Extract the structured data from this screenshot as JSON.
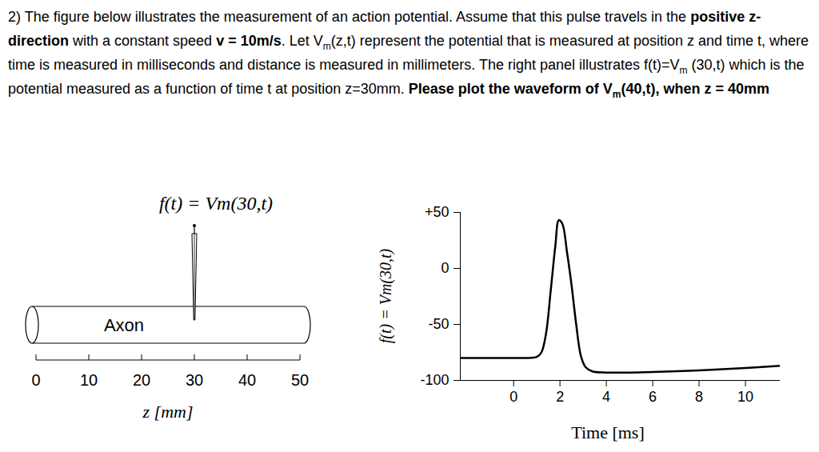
{
  "question": {
    "runs": [
      {
        "text": "2) The figure below illustrates the measurement of an action potential. Assume that this pulse travels in the "
      },
      {
        "text": "positive z-direction",
        "bold": true
      },
      {
        "text": " with a constant speed "
      },
      {
        "text": "v = 10m/s",
        "bold": true
      },
      {
        "text": ". Let V"
      },
      {
        "text": "m",
        "sub": true
      },
      {
        "text": "(z,t) represent the potential that is measured at position z and time t, where time is measured in milliseconds and distance is measured in millimeters. The right panel illustrates f(t)=V"
      },
      {
        "text": "m",
        "sub": true
      },
      {
        "text": " (30,t) which is the potential measured as a function of time t at position z=30mm. "
      },
      {
        "text": "Please plot the waveform of V",
        "bold": true
      },
      {
        "text": "m",
        "bold": true,
        "sub": true
      },
      {
        "text": "(40,t), when z = 40mm",
        "bold": true
      }
    ]
  },
  "diagram": {
    "title": "f(t) = Vm(30,t)",
    "axon_label": "Axon",
    "probe_z": 30,
    "z_ticks": [
      0,
      10,
      20,
      30,
      40,
      50
    ],
    "z_label": "z [mm]"
  },
  "chart_data": {
    "type": "line",
    "xlabel": "Time [ms]",
    "ylabel": "f(t) = Vm(30,t)",
    "x": [
      -2.3,
      -1,
      0,
      0.5,
      1.0,
      1.2,
      1.4,
      1.6,
      1.8,
      1.95,
      2.1,
      2.3,
      2.5,
      2.7,
      2.9,
      3.1,
      3.4,
      4,
      5,
      6,
      8,
      10,
      11.5
    ],
    "series": [
      {
        "color": "#000000",
        "values": [
          -80,
          -80,
          -80,
          -80,
          -79,
          -75,
          -58,
          -20,
          20,
          43,
          40,
          15,
          -15,
          -50,
          -78,
          -88,
          -92,
          -93,
          -93,
          -92.5,
          -91,
          -89,
          -87
        ]
      }
    ],
    "xlim": [
      -2.3,
      11.5
    ],
    "xticks": [
      0,
      2,
      4,
      6,
      8,
      10
    ],
    "ylim": [
      -100,
      50
    ],
    "yticks": [
      {
        "value": 50,
        "label": "+50"
      },
      0,
      -50,
      -100
    ],
    "grid": false
  }
}
